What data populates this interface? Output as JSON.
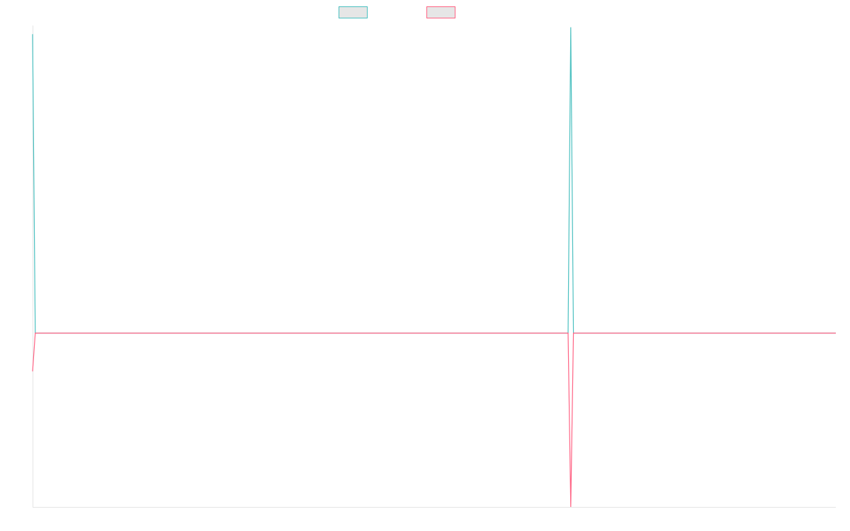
{
  "chart_data": {
    "type": "line",
    "x": [
      0,
      1,
      200,
      201,
      202,
      300
    ],
    "xlim": [
      0,
      300
    ],
    "ylim": [
      -1,
      1.77
    ],
    "grid": false,
    "legend": "top",
    "series": [
      {
        "color": "#4bc0c0",
        "values": [
          1.72,
          0,
          0,
          1.76,
          0,
          0
        ]
      },
      {
        "color": "#ff6384",
        "values": [
          -0.22,
          0,
          0,
          -1,
          0,
          0
        ]
      }
    ]
  }
}
